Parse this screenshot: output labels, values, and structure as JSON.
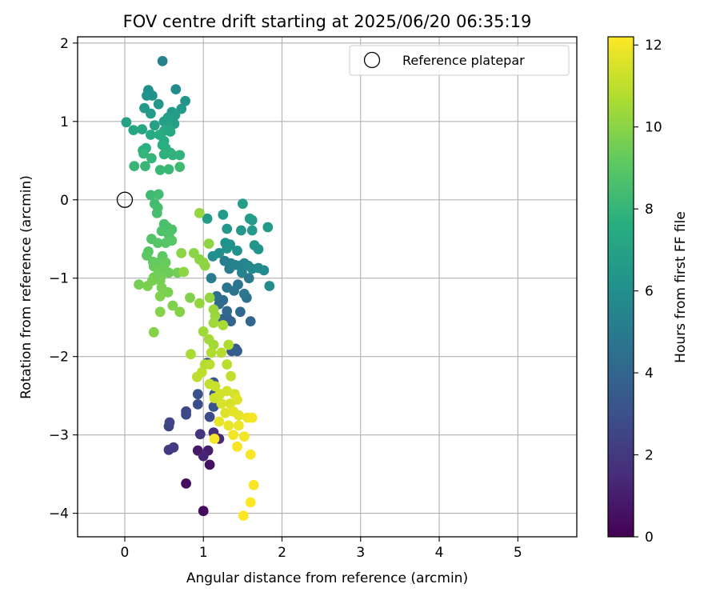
{
  "chart_data": {
    "type": "scatter",
    "title": "FOV centre drift starting at 2025/06/20 06:35:19",
    "xlabel": "Angular distance from reference (arcmin)",
    "ylabel": "Rotation from reference (arcmin)",
    "xlim": [
      -0.6,
      5.75
    ],
    "ylim": [
      -4.3,
      2.08
    ],
    "xticks": [
      0,
      1,
      2,
      3,
      4,
      5
    ],
    "yticks": [
      -4,
      -3,
      -2,
      -1,
      0,
      1,
      2
    ],
    "grid": true,
    "legend": {
      "placement": "top-right",
      "entries": [
        "Reference platepar"
      ]
    },
    "reference_point": {
      "x": 0,
      "y": 0,
      "label": "Reference platepar"
    },
    "colorbar": {
      "label": "Hours from first FF file",
      "colormap": "viridis",
      "range": [
        0,
        12.2
      ],
      "ticks": [
        0,
        2,
        4,
        6,
        8,
        10,
        12
      ]
    },
    "series": [
      {
        "points": [
          {
            "x": 1.0,
            "y": -3.97,
            "c": 0.3
          },
          {
            "x": 0.78,
            "y": -3.62,
            "c": 0.4
          },
          {
            "x": 1.08,
            "y": -3.38,
            "c": 0.6
          },
          {
            "x": 0.93,
            "y": -3.2,
            "c": 0.8
          },
          {
            "x": 1.06,
            "y": -3.2,
            "c": 1.0
          },
          {
            "x": 1.0,
            "y": -3.27,
            "c": 1.2
          },
          {
            "x": 1.2,
            "y": -3.05,
            "c": 1.4
          },
          {
            "x": 1.13,
            "y": -2.97,
            "c": 1.6
          },
          {
            "x": 0.96,
            "y": -2.99,
            "c": 1.8
          },
          {
            "x": 0.56,
            "y": -3.19,
            "c": 2.0
          },
          {
            "x": 0.62,
            "y": -3.16,
            "c": 2.2
          },
          {
            "x": 0.56,
            "y": -2.89,
            "c": 2.4
          },
          {
            "x": 0.57,
            "y": -2.84,
            "c": 2.5
          },
          {
            "x": 0.78,
            "y": -2.7,
            "c": 2.6
          },
          {
            "x": 0.78,
            "y": -2.74,
            "c": 2.7
          },
          {
            "x": 1.08,
            "y": -2.77,
            "c": 2.8
          },
          {
            "x": 0.93,
            "y": -2.61,
            "c": 2.9
          },
          {
            "x": 0.93,
            "y": -2.48,
            "c": 3.0
          },
          {
            "x": 1.13,
            "y": -2.64,
            "c": 3.1
          },
          {
            "x": 1.14,
            "y": -2.48,
            "c": 3.2
          },
          {
            "x": 1.13,
            "y": -2.33,
            "c": 3.3
          },
          {
            "x": 1.05,
            "y": -2.08,
            "c": 3.3
          },
          {
            "x": 1.36,
            "y": -1.93,
            "c": 3.4
          },
          {
            "x": 1.41,
            "y": -1.9,
            "c": 3.5
          },
          {
            "x": 1.43,
            "y": -1.93,
            "c": 3.6
          },
          {
            "x": 1.3,
            "y": -1.5,
            "c": 3.7
          },
          {
            "x": 1.25,
            "y": -1.52,
            "c": 3.8
          },
          {
            "x": 1.35,
            "y": -1.55,
            "c": 3.9
          },
          {
            "x": 1.6,
            "y": -1.55,
            "c": 4.0
          },
          {
            "x": 1.3,
            "y": -1.42,
            "c": 4.1
          },
          {
            "x": 1.47,
            "y": -1.43,
            "c": 4.1
          },
          {
            "x": 1.2,
            "y": -1.33,
            "c": 4.2
          },
          {
            "x": 1.25,
            "y": -1.28,
            "c": 4.3
          },
          {
            "x": 1.17,
            "y": -1.23,
            "c": 4.4
          },
          {
            "x": 1.55,
            "y": -1.25,
            "c": 4.5
          },
          {
            "x": 1.3,
            "y": -1.12,
            "c": 4.6
          },
          {
            "x": 1.39,
            "y": -1.16,
            "c": 4.6
          },
          {
            "x": 1.44,
            "y": -1.08,
            "c": 4.7
          },
          {
            "x": 1.52,
            "y": -1.2,
            "c": 4.8
          },
          {
            "x": 1.58,
            "y": -1.0,
            "c": 4.9
          },
          {
            "x": 1.1,
            "y": -1.0,
            "c": 5.0
          },
          {
            "x": 1.33,
            "y": -0.88,
            "c": 5.0
          },
          {
            "x": 1.27,
            "y": -0.78,
            "c": 5.1
          },
          {
            "x": 1.35,
            "y": -0.81,
            "c": 5.2
          },
          {
            "x": 1.4,
            "y": -0.83,
            "c": 5.3
          },
          {
            "x": 1.46,
            "y": -0.84,
            "c": 5.4
          },
          {
            "x": 1.49,
            "y": -0.93,
            "c": 5.4
          },
          {
            "x": 1.52,
            "y": -0.81,
            "c": 5.5
          },
          {
            "x": 1.57,
            "y": -0.84,
            "c": 5.6
          },
          {
            "x": 1.62,
            "y": -0.88,
            "c": 5.7
          },
          {
            "x": 1.7,
            "y": -0.87,
            "c": 5.8
          },
          {
            "x": 1.77,
            "y": -0.9,
            "c": 5.8
          },
          {
            "x": 1.84,
            "y": -1.1,
            "c": 5.9
          },
          {
            "x": 1.12,
            "y": -0.72,
            "c": 6.0
          },
          {
            "x": 1.2,
            "y": -0.68,
            "c": 6.0
          },
          {
            "x": 1.28,
            "y": -0.55,
            "c": 6.1
          },
          {
            "x": 1.34,
            "y": -0.57,
            "c": 6.1
          },
          {
            "x": 1.3,
            "y": -0.62,
            "c": 6.2
          },
          {
            "x": 1.43,
            "y": -0.65,
            "c": 6.2
          },
          {
            "x": 1.65,
            "y": -0.58,
            "c": 6.3
          },
          {
            "x": 1.7,
            "y": -0.63,
            "c": 6.3
          },
          {
            "x": 1.3,
            "y": -0.37,
            "c": 6.4
          },
          {
            "x": 1.48,
            "y": -0.39,
            "c": 6.4
          },
          {
            "x": 1.62,
            "y": -0.39,
            "c": 6.5
          },
          {
            "x": 1.82,
            "y": -0.35,
            "c": 6.5
          },
          {
            "x": 1.05,
            "y": -0.24,
            "c": 6.6
          },
          {
            "x": 1.25,
            "y": -0.19,
            "c": 6.6
          },
          {
            "x": 1.59,
            "y": -0.24,
            "c": 6.7
          },
          {
            "x": 1.62,
            "y": -0.26,
            "c": 6.7
          },
          {
            "x": 1.5,
            "y": -0.05,
            "c": 6.8
          },
          {
            "x": 0.48,
            "y": 1.77,
            "c": 5.4
          },
          {
            "x": 0.65,
            "y": 1.41,
            "c": 5.9
          },
          {
            "x": 0.3,
            "y": 1.4,
            "c": 6.0
          },
          {
            "x": 0.32,
            "y": 1.35,
            "c": 6.1
          },
          {
            "x": 0.28,
            "y": 1.33,
            "c": 6.2
          },
          {
            "x": 0.35,
            "y": 1.33,
            "c": 6.2
          },
          {
            "x": 0.77,
            "y": 1.26,
            "c": 6.3
          },
          {
            "x": 0.43,
            "y": 1.22,
            "c": 6.4
          },
          {
            "x": 0.25,
            "y": 1.17,
            "c": 6.5
          },
          {
            "x": 0.72,
            "y": 1.16,
            "c": 6.5
          },
          {
            "x": 0.33,
            "y": 1.1,
            "c": 6.6
          },
          {
            "x": 0.6,
            "y": 1.12,
            "c": 6.6
          },
          {
            "x": 0.64,
            "y": 1.08,
            "c": 6.7
          },
          {
            "x": 0.55,
            "y": 1.05,
            "c": 6.8
          },
          {
            "x": 0.5,
            "y": 1.0,
            "c": 6.8
          },
          {
            "x": 0.63,
            "y": 0.97,
            "c": 6.9
          },
          {
            "x": 0.02,
            "y": 0.99,
            "c": 7.0
          },
          {
            "x": 0.38,
            "y": 0.95,
            "c": 7.0
          },
          {
            "x": 0.55,
            "y": 0.93,
            "c": 7.1
          },
          {
            "x": 0.11,
            "y": 0.89,
            "c": 7.2
          },
          {
            "x": 0.22,
            "y": 0.9,
            "c": 7.2
          },
          {
            "x": 0.5,
            "y": 0.88,
            "c": 7.3
          },
          {
            "x": 0.58,
            "y": 0.87,
            "c": 7.3
          },
          {
            "x": 0.33,
            "y": 0.83,
            "c": 7.4
          },
          {
            "x": 0.44,
            "y": 0.83,
            "c": 7.5
          },
          {
            "x": 0.5,
            "y": 0.75,
            "c": 7.5
          },
          {
            "x": 0.48,
            "y": 0.7,
            "c": 7.6
          },
          {
            "x": 0.52,
            "y": 0.66,
            "c": 7.6
          },
          {
            "x": 0.23,
            "y": 0.63,
            "c": 7.7
          },
          {
            "x": 0.27,
            "y": 0.66,
            "c": 7.7
          },
          {
            "x": 0.58,
            "y": 0.6,
            "c": 7.8
          },
          {
            "x": 0.5,
            "y": 0.58,
            "c": 7.8
          },
          {
            "x": 0.61,
            "y": 0.57,
            "c": 7.9
          },
          {
            "x": 0.7,
            "y": 0.57,
            "c": 7.9
          },
          {
            "x": 0.24,
            "y": 0.59,
            "c": 8.0
          },
          {
            "x": 0.34,
            "y": 0.53,
            "c": 8.0
          },
          {
            "x": 0.12,
            "y": 0.43,
            "c": 8.1
          },
          {
            "x": 0.26,
            "y": 0.43,
            "c": 8.1
          },
          {
            "x": 0.45,
            "y": 0.38,
            "c": 8.2
          },
          {
            "x": 0.56,
            "y": 0.39,
            "c": 8.2
          },
          {
            "x": 0.7,
            "y": 0.42,
            "c": 8.3
          }
        ]
      },
      {
        "points": [
          {
            "x": 0.33,
            "y": 0.06,
            "c": 8.3
          },
          {
            "x": 0.43,
            "y": 0.07,
            "c": 8.4
          },
          {
            "x": 0.38,
            "y": -0.05,
            "c": 8.4
          },
          {
            "x": 0.42,
            "y": -0.1,
            "c": 8.5
          },
          {
            "x": 0.41,
            "y": -0.17,
            "c": 8.5
          },
          {
            "x": 0.5,
            "y": -0.31,
            "c": 8.6
          },
          {
            "x": 0.54,
            "y": -0.35,
            "c": 8.6
          },
          {
            "x": 0.6,
            "y": -0.38,
            "c": 8.7
          },
          {
            "x": 0.47,
            "y": -0.4,
            "c": 8.7
          },
          {
            "x": 0.56,
            "y": -0.45,
            "c": 8.8
          },
          {
            "x": 0.34,
            "y": -0.5,
            "c": 8.8
          },
          {
            "x": 0.42,
            "y": -0.55,
            "c": 8.9
          },
          {
            "x": 0.52,
            "y": -0.55,
            "c": 8.9
          },
          {
            "x": 0.6,
            "y": -0.52,
            "c": 9.0
          },
          {
            "x": 0.3,
            "y": -0.66,
            "c": 9.0
          },
          {
            "x": 0.28,
            "y": -0.71,
            "c": 9.1
          },
          {
            "x": 0.48,
            "y": -0.72,
            "c": 9.1
          },
          {
            "x": 0.36,
            "y": -0.79,
            "c": 9.2
          },
          {
            "x": 0.45,
            "y": -0.79,
            "c": 9.2
          },
          {
            "x": 0.52,
            "y": -0.8,
            "c": 9.3
          },
          {
            "x": 0.37,
            "y": -0.85,
            "c": 9.3
          },
          {
            "x": 0.5,
            "y": -0.87,
            "c": 9.4
          },
          {
            "x": 0.43,
            "y": -0.9,
            "c": 9.4
          },
          {
            "x": 0.56,
            "y": -0.93,
            "c": 9.4
          },
          {
            "x": 0.67,
            "y": -0.93,
            "c": 9.5
          },
          {
            "x": 0.37,
            "y": -0.99,
            "c": 9.5
          },
          {
            "x": 0.46,
            "y": -0.98,
            "c": 9.5
          },
          {
            "x": 0.35,
            "y": -1.03,
            "c": 9.6
          },
          {
            "x": 0.45,
            "y": -1.03,
            "c": 9.6
          },
          {
            "x": 0.18,
            "y": -1.08,
            "c": 9.6
          },
          {
            "x": 0.29,
            "y": -1.1,
            "c": 9.7
          },
          {
            "x": 0.47,
            "y": -1.12,
            "c": 9.7
          },
          {
            "x": 0.55,
            "y": -1.18,
            "c": 9.7
          },
          {
            "x": 0.45,
            "y": -1.23,
            "c": 9.8
          },
          {
            "x": 0.83,
            "y": -1.25,
            "c": 9.8
          },
          {
            "x": 0.61,
            "y": -1.35,
            "c": 9.8
          },
          {
            "x": 0.7,
            "y": -1.43,
            "c": 9.9
          },
          {
            "x": 0.45,
            "y": -1.43,
            "c": 9.9
          },
          {
            "x": 0.37,
            "y": -1.69,
            "c": 9.9
          },
          {
            "x": 0.72,
            "y": -0.68,
            "c": 10.0
          },
          {
            "x": 0.88,
            "y": -0.68,
            "c": 10.0
          },
          {
            "x": 0.95,
            "y": -0.76,
            "c": 10.0
          },
          {
            "x": 1.0,
            "y": -0.8,
            "c": 10.1
          },
          {
            "x": 1.07,
            "y": -0.56,
            "c": 10.1
          },
          {
            "x": 1.02,
            "y": -0.84,
            "c": 10.1
          },
          {
            "x": 0.75,
            "y": -0.92,
            "c": 10.1
          },
          {
            "x": 0.95,
            "y": -1.32,
            "c": 10.2
          },
          {
            "x": 1.08,
            "y": -1.25,
            "c": 10.2
          },
          {
            "x": 0.95,
            "y": -0.17,
            "c": 10.2
          },
          {
            "x": 1.13,
            "y": -1.4,
            "c": 10.3
          },
          {
            "x": 1.15,
            "y": -1.48,
            "c": 10.3
          },
          {
            "x": 1.13,
            "y": -1.57,
            "c": 10.4
          },
          {
            "x": 1.0,
            "y": -1.68,
            "c": 10.4
          },
          {
            "x": 1.07,
            "y": -1.78,
            "c": 10.5
          },
          {
            "x": 1.13,
            "y": -1.85,
            "c": 10.5
          },
          {
            "x": 1.25,
            "y": -1.6,
            "c": 10.6
          },
          {
            "x": 0.84,
            "y": -1.97,
            "c": 10.6
          },
          {
            "x": 1.1,
            "y": -1.95,
            "c": 10.7
          },
          {
            "x": 1.32,
            "y": -1.85,
            "c": 10.7
          },
          {
            "x": 1.23,
            "y": -1.95,
            "c": 10.8
          },
          {
            "x": 1.02,
            "y": -2.1,
            "c": 10.8
          },
          {
            "x": 1.08,
            "y": -2.1,
            "c": 10.9
          },
          {
            "x": 1.3,
            "y": -2.1,
            "c": 10.9
          },
          {
            "x": 0.98,
            "y": -2.2,
            "c": 11.0
          },
          {
            "x": 0.92,
            "y": -2.26,
            "c": 11.0
          },
          {
            "x": 1.35,
            "y": -2.25,
            "c": 11.1
          },
          {
            "x": 1.08,
            "y": -2.35,
            "c": 11.1
          },
          {
            "x": 1.15,
            "y": -2.38,
            "c": 11.2
          },
          {
            "x": 1.21,
            "y": -2.48,
            "c": 11.3
          },
          {
            "x": 1.14,
            "y": -2.53,
            "c": 11.3
          },
          {
            "x": 1.3,
            "y": -2.44,
            "c": 11.4
          },
          {
            "x": 1.4,
            "y": -2.48,
            "c": 11.4
          },
          {
            "x": 1.23,
            "y": -2.6,
            "c": 11.5
          },
          {
            "x": 1.34,
            "y": -2.6,
            "c": 11.5
          },
          {
            "x": 1.43,
            "y": -2.55,
            "c": 11.6
          },
          {
            "x": 1.28,
            "y": -2.72,
            "c": 11.6
          },
          {
            "x": 1.38,
            "y": -2.7,
            "c": 11.7
          },
          {
            "x": 1.45,
            "y": -2.75,
            "c": 11.7
          },
          {
            "x": 1.2,
            "y": -2.83,
            "c": 11.8
          },
          {
            "x": 1.32,
            "y": -2.88,
            "c": 11.8
          },
          {
            "x": 1.45,
            "y": -2.88,
            "c": 11.9
          },
          {
            "x": 1.56,
            "y": -2.78,
            "c": 11.9
          },
          {
            "x": 1.62,
            "y": -2.78,
            "c": 12.0
          },
          {
            "x": 1.38,
            "y": -3.0,
            "c": 12.0
          },
          {
            "x": 1.52,
            "y": -3.02,
            "c": 12.0
          },
          {
            "x": 1.14,
            "y": -3.05,
            "c": 12.0
          },
          {
            "x": 1.43,
            "y": -3.15,
            "c": 12.1
          },
          {
            "x": 1.6,
            "y": -3.25,
            "c": 12.1
          },
          {
            "x": 1.64,
            "y": -3.64,
            "c": 12.1
          },
          {
            "x": 1.6,
            "y": -3.86,
            "c": 12.2
          },
          {
            "x": 1.51,
            "y": -4.03,
            "c": 12.2
          }
        ]
      }
    ]
  }
}
